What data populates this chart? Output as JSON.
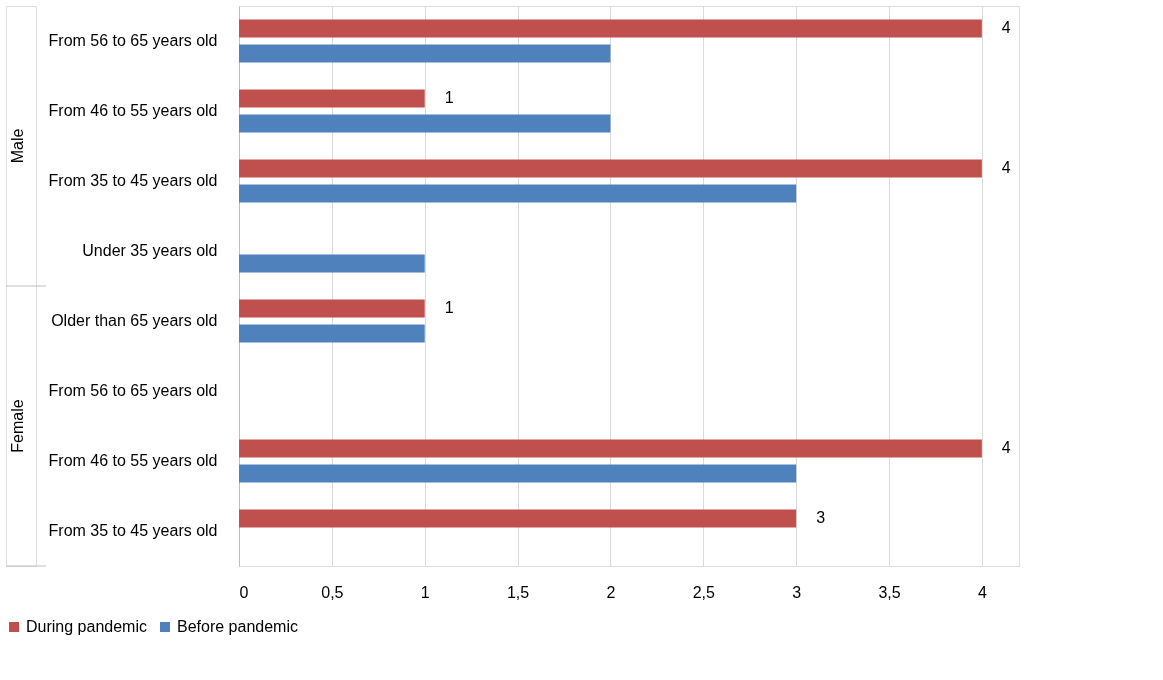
{
  "chart_data": {
    "type": "bar",
    "orientation": "horizontal",
    "categories": [
      "From 56 to 65 years old",
      "From 46 to 55 years old",
      "From 35 to 45 years old",
      "Under 35 years old",
      "Older than 65 years old",
      "From 56 to 65 years old",
      "From 46 to 55 years old",
      "From 35 to 45 years old"
    ],
    "series": [
      {
        "name": "During pandemic",
        "color": "#c0504d",
        "values": [
          4,
          1,
          4,
          null,
          1,
          null,
          4,
          3
        ],
        "value_labels": [
          "4",
          "1",
          "4",
          null,
          "1",
          null,
          "4",
          "3"
        ]
      },
      {
        "name": "Before pandemic",
        "color": "#4f81bd",
        "values": [
          2,
          2,
          3,
          1,
          1,
          null,
          3,
          null
        ]
      }
    ],
    "xlim": [
      0,
      4.2
    ],
    "xticks": [
      0,
      {
        "value": 0.5,
        "label": "0,5"
      },
      1,
      {
        "value": 1.5,
        "label": "1,5"
      },
      2,
      {
        "value": 2.5,
        "label": "2,5"
      },
      3,
      {
        "value": 3.5,
        "label": "3,5"
      },
      4
    ],
    "annotations": [
      "Male",
      "Female"
    ],
    "grid": "x",
    "legend": "bottom"
  }
}
